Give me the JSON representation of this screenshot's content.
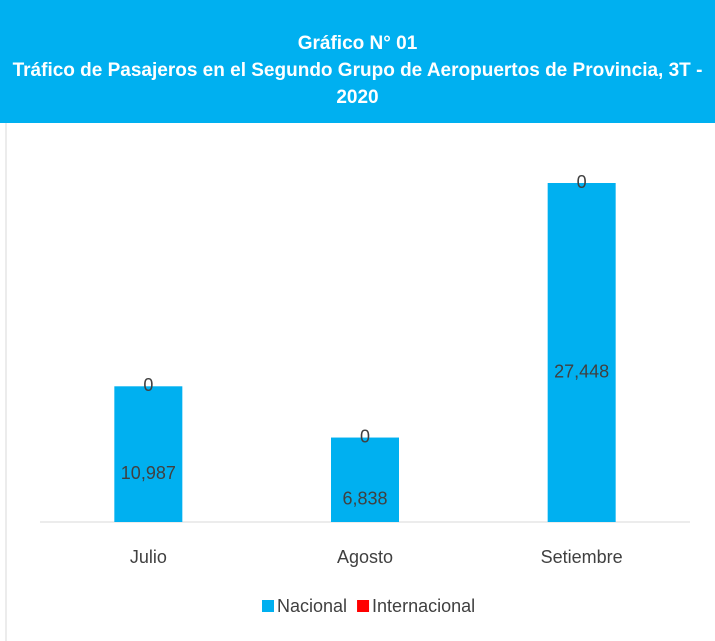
{
  "chart_data": {
    "type": "bar",
    "stacked": true,
    "title": "Gráfico N° 01",
    "subtitle": "Tráfico de Pasajeros en el Segundo Grupo de Aeropuertos de Provincia, 3T - 2020",
    "categories": [
      "Julio",
      "Agosto",
      "Setiembre"
    ],
    "series": [
      {
        "name": "Nacional",
        "color": "#00b0f0",
        "values": [
          10987,
          6838,
          27448
        ],
        "value_labels": [
          "10,987",
          "6,838",
          "27,448"
        ]
      },
      {
        "name": "Internacional",
        "color": "#ff0000",
        "values": [
          0,
          0,
          0
        ]
      }
    ],
    "legend": "bottom"
  }
}
